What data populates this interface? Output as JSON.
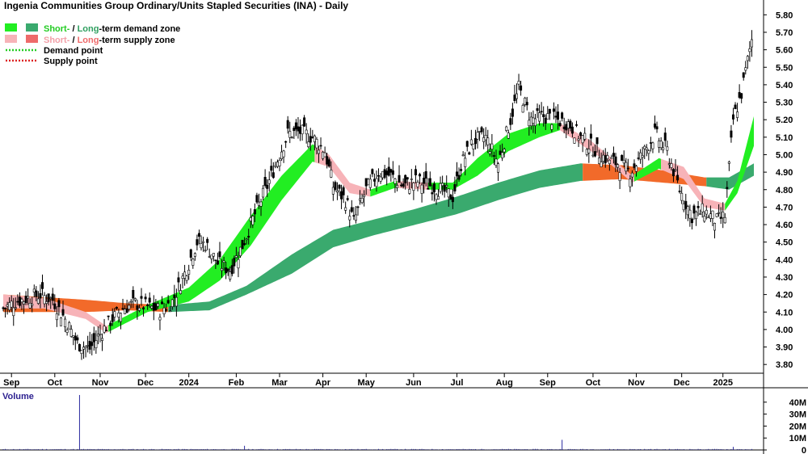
{
  "chart_data": {
    "type": "candlestick",
    "title": "Ingenia Communities Group Ordinary/Units Stapled Securities (INA) - Daily",
    "legend": {
      "demand_short": "Short-",
      "demand_sep": " / ",
      "demand_long": "Long",
      "demand_rest": "-term demand zone",
      "supply_short": "Short-",
      "supply_sep": " / ",
      "supply_long": "Long",
      "supply_rest": "-term supply zone",
      "demand_point": "Demand point",
      "supply_point": "Supply point"
    },
    "colors": {
      "short_demand": "#22ee22",
      "long_demand": "#3aaa6e",
      "short_supply": "#f7b3b8",
      "long_supply": "#f26a2a",
      "legend_long_supply": "#ee6a6a",
      "demand_point": "#22cc22",
      "supply_point": "#dd2222",
      "volume": "#2a2aa0",
      "volume_title": "#2b1f8f"
    },
    "y_axis": {
      "ylim": [
        3.75,
        5.82
      ],
      "ticks": [
        "3.80",
        "3.90",
        "4.00",
        "4.10",
        "4.20",
        "4.30",
        "4.40",
        "4.50",
        "4.60",
        "4.70",
        "4.80",
        "4.90",
        "5.00",
        "5.10",
        "5.20",
        "5.30",
        "5.40",
        "5.50",
        "5.60",
        "5.70",
        "5.80"
      ]
    },
    "x_axis": {
      "labels": [
        "Sep",
        "Oct",
        "Nov",
        "Dec",
        "2024",
        "Feb",
        "Mar",
        "Apr",
        "May",
        "Jun",
        "Jul",
        "Aug",
        "Sep",
        "Oct",
        "Nov",
        "Dec",
        "2025"
      ],
      "tick_index": [
        4,
        25,
        47,
        69,
        90,
        113,
        134,
        155,
        176,
        199,
        220,
        243,
        264,
        286,
        307,
        329,
        349
      ]
    },
    "bars_count": 364,
    "price_anchors": [
      [
        0,
        4.12
      ],
      [
        6,
        4.16
      ],
      [
        12,
        4.18
      ],
      [
        18,
        4.2
      ],
      [
        24,
        4.17
      ],
      [
        30,
        4.06
      ],
      [
        36,
        3.92
      ],
      [
        42,
        3.89
      ],
      [
        46,
        3.96
      ],
      [
        52,
        4.05
      ],
      [
        58,
        4.12
      ],
      [
        64,
        4.15
      ],
      [
        70,
        4.13
      ],
      [
        76,
        4.11
      ],
      [
        82,
        4.16
      ],
      [
        88,
        4.32
      ],
      [
        94,
        4.5
      ],
      [
        98,
        4.49
      ],
      [
        104,
        4.38
      ],
      [
        110,
        4.34
      ],
      [
        116,
        4.48
      ],
      [
        122,
        4.66
      ],
      [
        128,
        4.82
      ],
      [
        134,
        5.0
      ],
      [
        138,
        5.12
      ],
      [
        144,
        5.13
      ],
      [
        150,
        5.1
      ],
      [
        156,
        5.02
      ],
      [
        160,
        4.82
      ],
      [
        166,
        4.74
      ],
      [
        170,
        4.62
      ],
      [
        176,
        4.8
      ],
      [
        182,
        4.9
      ],
      [
        188,
        4.88
      ],
      [
        194,
        4.82
      ],
      [
        200,
        4.85
      ],
      [
        206,
        4.83
      ],
      [
        212,
        4.8
      ],
      [
        218,
        4.76
      ],
      [
        222,
        4.94
      ],
      [
        228,
        5.08
      ],
      [
        234,
        5.1
      ],
      [
        240,
        4.95
      ],
      [
        246,
        5.2
      ],
      [
        250,
        5.38
      ],
      [
        256,
        5.2
      ],
      [
        262,
        5.22
      ],
      [
        268,
        5.2
      ],
      [
        274,
        5.18
      ],
      [
        280,
        5.1
      ],
      [
        286,
        5.04
      ],
      [
        292,
        4.98
      ],
      [
        298,
        4.95
      ],
      [
        304,
        4.9
      ],
      [
        310,
        5.0
      ],
      [
        316,
        5.12
      ],
      [
        322,
        5.02
      ],
      [
        328,
        4.8
      ],
      [
        334,
        4.65
      ],
      [
        340,
        4.68
      ],
      [
        346,
        4.62
      ],
      [
        350,
        4.65
      ],
      [
        354,
        5.2
      ],
      [
        358,
        5.35
      ],
      [
        362,
        5.6
      ],
      [
        364,
        5.72
      ]
    ],
    "short_zone_top": [
      [
        0,
        4.2
      ],
      [
        20,
        4.18
      ],
      [
        40,
        4.1
      ],
      [
        50,
        4.02
      ],
      [
        70,
        4.14
      ],
      [
        90,
        4.24
      ],
      [
        105,
        4.4
      ],
      [
        120,
        4.65
      ],
      [
        135,
        4.88
      ],
      [
        150,
        5.06
      ],
      [
        158,
        5.0
      ],
      [
        168,
        4.84
      ],
      [
        178,
        4.8
      ],
      [
        190,
        4.85
      ],
      [
        205,
        4.84
      ],
      [
        218,
        4.84
      ],
      [
        230,
        4.98
      ],
      [
        245,
        5.12
      ],
      [
        260,
        5.18
      ],
      [
        270,
        5.18
      ],
      [
        285,
        5.08
      ],
      [
        295,
        4.98
      ],
      [
        305,
        4.88
      ],
      [
        318,
        4.98
      ],
      [
        330,
        4.93
      ],
      [
        340,
        4.75
      ],
      [
        350,
        4.72
      ],
      [
        356,
        4.85
      ],
      [
        364,
        5.22
      ]
    ],
    "short_zone_bot": [
      [
        0,
        4.12
      ],
      [
        20,
        4.12
      ],
      [
        40,
        4.06
      ],
      [
        50,
        3.98
      ],
      [
        70,
        4.1
      ],
      [
        90,
        4.16
      ],
      [
        105,
        4.28
      ],
      [
        120,
        4.48
      ],
      [
        135,
        4.74
      ],
      [
        150,
        4.96
      ],
      [
        158,
        4.93
      ],
      [
        168,
        4.78
      ],
      [
        178,
        4.76
      ],
      [
        190,
        4.81
      ],
      [
        205,
        4.8
      ],
      [
        218,
        4.8
      ],
      [
        230,
        4.88
      ],
      [
        245,
        5.02
      ],
      [
        260,
        5.1
      ],
      [
        270,
        5.14
      ],
      [
        285,
        5.02
      ],
      [
        295,
        4.94
      ],
      [
        305,
        4.84
      ],
      [
        318,
        4.92
      ],
      [
        330,
        4.86
      ],
      [
        340,
        4.7
      ],
      [
        350,
        4.68
      ],
      [
        356,
        4.78
      ],
      [
        364,
        5.05
      ]
    ],
    "long_zone_top": [
      [
        0,
        4.2
      ],
      [
        40,
        4.17
      ],
      [
        60,
        4.15
      ],
      [
        80,
        4.14
      ],
      [
        100,
        4.16
      ],
      [
        118,
        4.25
      ],
      [
        140,
        4.43
      ],
      [
        160,
        4.57
      ],
      [
        180,
        4.63
      ],
      [
        200,
        4.69
      ],
      [
        220,
        4.76
      ],
      [
        240,
        4.84
      ],
      [
        260,
        4.91
      ],
      [
        280,
        4.95
      ],
      [
        300,
        4.94
      ],
      [
        320,
        4.91
      ],
      [
        340,
        4.87
      ],
      [
        352,
        4.87
      ],
      [
        364,
        4.95
      ]
    ],
    "long_zone_bot": [
      [
        0,
        4.1
      ],
      [
        40,
        4.1
      ],
      [
        60,
        4.11
      ],
      [
        80,
        4.1
      ],
      [
        100,
        4.11
      ],
      [
        118,
        4.2
      ],
      [
        140,
        4.32
      ],
      [
        160,
        4.47
      ],
      [
        180,
        4.54
      ],
      [
        200,
        4.6
      ],
      [
        220,
        4.66
      ],
      [
        240,
        4.74
      ],
      [
        260,
        4.81
      ],
      [
        280,
        4.85
      ],
      [
        300,
        4.86
      ],
      [
        320,
        4.84
      ],
      [
        340,
        4.82
      ],
      [
        352,
        4.8
      ],
      [
        364,
        4.88
      ]
    ],
    "volume": {
      "label": "Volume",
      "ticks": [
        "0",
        "10M",
        "20M",
        "30M",
        "40M"
      ],
      "ylim": [
        0,
        48000000
      ],
      "base": 600000,
      "spikes": [
        [
          37,
          46000000
        ],
        [
          117,
          3500000
        ],
        [
          271,
          8500000
        ],
        [
          354,
          2600000
        ]
      ]
    }
  }
}
